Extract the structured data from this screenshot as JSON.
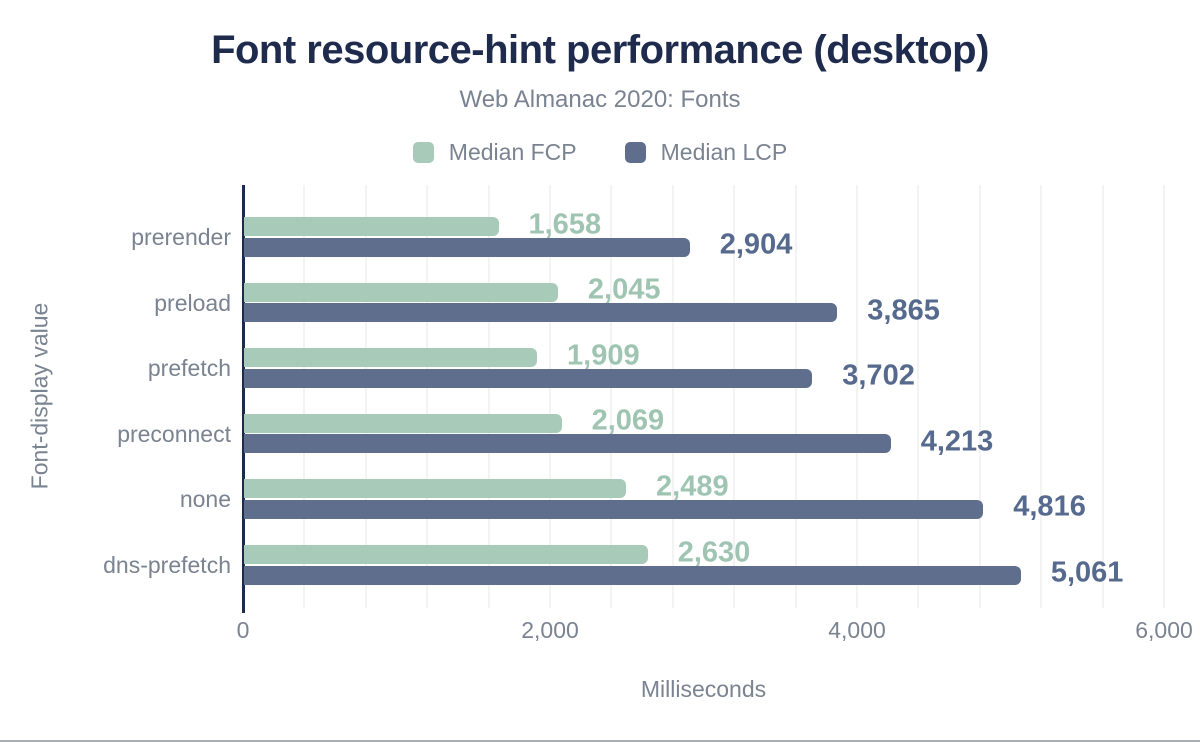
{
  "chart_data": {
    "type": "bar",
    "orientation": "horizontal",
    "title": "Font resource-hint performance (desktop)",
    "subtitle": "Web Almanac 2020: Fonts",
    "xlabel": "Milliseconds",
    "ylabel": "Font-display value",
    "categories": [
      "prerender",
      "preload",
      "prefetch",
      "preconnect",
      "none",
      "dns-prefetch"
    ],
    "series": [
      {
        "name": "Median FCP",
        "color": "#a8cab9",
        "label_color": "#9fc5b2",
        "values": [
          1658,
          2045,
          1909,
          2069,
          2489,
          2630
        ]
      },
      {
        "name": "Median LCP",
        "color": "#5f6e8c",
        "label_color": "#566a8e",
        "values": [
          2904,
          3865,
          3702,
          4213,
          4816,
          5061
        ]
      }
    ],
    "xlim": [
      0,
      6000
    ],
    "xticks": [
      0,
      2000,
      4000,
      6000
    ],
    "grid_interval": 400,
    "grid_on": true,
    "legend_position": "top",
    "value_labels": true
  },
  "colors": {
    "title": "#1e2b4d",
    "text_gray": "#7a8391",
    "gridline": "#f3f3f4",
    "axis_line": "#1b2b4b",
    "bottom_rule": "#a9adb6",
    "background": "#ffffff"
  }
}
